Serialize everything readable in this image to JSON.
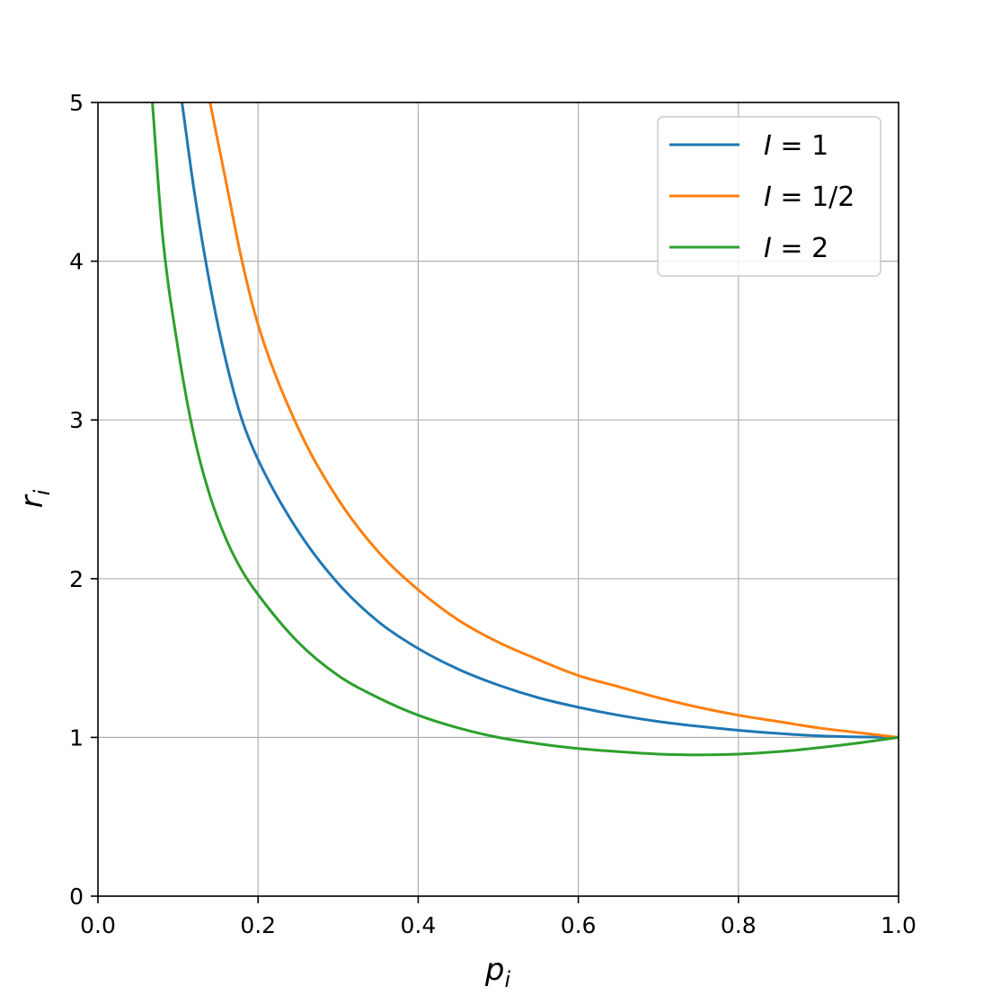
{
  "chart_data": {
    "type": "line",
    "xlabel": "p",
    "xlabel_sub": "i",
    "ylabel": "r",
    "ylabel_sub": "i",
    "xlim": [
      0.0,
      1.0
    ],
    "ylim": [
      0,
      5
    ],
    "xticks": [
      0.0,
      0.2,
      0.4,
      0.6,
      0.8,
      1.0
    ],
    "xtick_labels": [
      "0.0",
      "0.2",
      "0.4",
      "0.6",
      "0.8",
      "1.0"
    ],
    "yticks": [
      0,
      1,
      2,
      3,
      4,
      5
    ],
    "ytick_labels": [
      "0",
      "1",
      "2",
      "3",
      "4",
      "5"
    ],
    "grid": true,
    "legend_position": "top-right",
    "series": [
      {
        "legend_var": "I",
        "legend_value": "1",
        "color": "#1f77b4",
        "x": [
          0.105,
          0.12,
          0.14,
          0.16,
          0.18,
          0.2,
          0.25,
          0.3,
          0.35,
          0.4,
          0.45,
          0.5,
          0.55,
          0.6,
          0.65,
          0.7,
          0.75,
          0.8,
          0.85,
          0.9,
          0.95,
          1.0
        ],
        "y": [
          5.0,
          4.45,
          3.85,
          3.37,
          3.0,
          2.75,
          2.3,
          1.97,
          1.73,
          1.56,
          1.43,
          1.33,
          1.25,
          1.19,
          1.14,
          1.1,
          1.07,
          1.045,
          1.025,
          1.01,
          1.003,
          1.0
        ]
      },
      {
        "legend_var": "I",
        "legend_value": "1/2",
        "color": "#ff7f0e",
        "x": [
          0.14,
          0.16,
          0.18,
          0.2,
          0.25,
          0.3,
          0.35,
          0.4,
          0.45,
          0.5,
          0.55,
          0.6,
          0.65,
          0.7,
          0.75,
          0.8,
          0.85,
          0.9,
          0.95,
          1.0
        ],
        "y": [
          5.0,
          4.5,
          4.0,
          3.6,
          2.95,
          2.5,
          2.17,
          1.93,
          1.74,
          1.6,
          1.49,
          1.39,
          1.32,
          1.25,
          1.19,
          1.14,
          1.1,
          1.06,
          1.03,
          1.0
        ]
      },
      {
        "legend_var": "I",
        "legend_value": "2",
        "color": "#2ca02c",
        "x": [
          0.068,
          0.08,
          0.1,
          0.12,
          0.14,
          0.16,
          0.18,
          0.2,
          0.25,
          0.3,
          0.35,
          0.4,
          0.45,
          0.5,
          0.55,
          0.6,
          0.65,
          0.7,
          0.75,
          0.8,
          0.85,
          0.9,
          0.95,
          1.0
        ],
        "y": [
          5.0,
          4.2,
          3.45,
          2.9,
          2.52,
          2.25,
          2.05,
          1.9,
          1.6,
          1.39,
          1.25,
          1.14,
          1.06,
          1.0,
          0.96,
          0.93,
          0.91,
          0.895,
          0.89,
          0.895,
          0.91,
          0.935,
          0.965,
          1.0
        ]
      }
    ]
  }
}
